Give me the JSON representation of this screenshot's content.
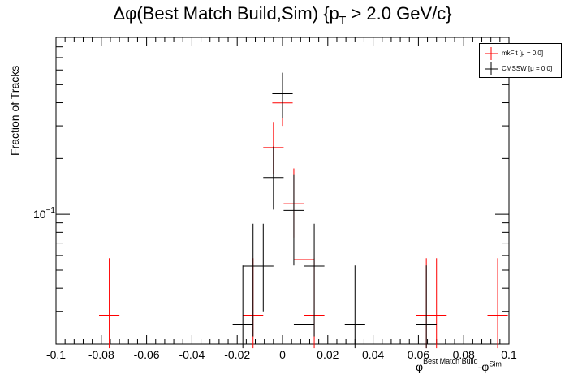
{
  "title_main": "Δφ(Best Match Build,Sim) {p",
  "title_sub": "T",
  "title_tail": " > 2.0 GeV/c}",
  "ylabel": "Fraction of Tracks",
  "xlabel_phi1": "φ",
  "xlabel_sub1": "Best Match Build",
  "xlabel_mid": "-φ",
  "xlabel_sup2": "Sim",
  "legend": [
    {
      "label": "mkFit  [μ =  0.0]",
      "color": "#ff0000"
    },
    {
      "label": "CMSSW  [μ =  0.0]",
      "color": "#000000"
    }
  ],
  "chart_data": {
    "type": "scatter",
    "xlim": [
      -0.1,
      0.1
    ],
    "ylim": [
      0.02,
      0.9
    ],
    "yscale": "log",
    "xticks": [
      "-0.1",
      "-0.08",
      "-0.06",
      "-0.04",
      "-0.02",
      "0",
      "0.02",
      "0.04",
      "0.06",
      "0.08",
      "0.1"
    ],
    "yticks": [
      "10^-1"
    ],
    "bin_half_width": 0.0045,
    "series": [
      {
        "name": "mkFit",
        "color": "#ff0000",
        "points": [
          {
            "x": -0.0765,
            "y": 0.0286,
            "lo": 0.019,
            "hi": 0.058
          },
          {
            "x": -0.013,
            "y": 0.0286,
            "lo": 0.019,
            "hi": 0.058
          },
          {
            "x": -0.004,
            "y": 0.229,
            "lo": 0.165,
            "hi": 0.315
          },
          {
            "x": 0.0,
            "y": 0.399,
            "lo": 0.3,
            "hi": 0.51
          },
          {
            "x": 0.005,
            "y": 0.114,
            "lo": 0.075,
            "hi": 0.177
          },
          {
            "x": 0.0095,
            "y": 0.057,
            "lo": 0.034,
            "hi": 0.097
          },
          {
            "x": 0.014,
            "y": 0.0286,
            "lo": 0.019,
            "hi": 0.058
          },
          {
            "x": 0.0635,
            "y": 0.0286,
            "lo": 0.019,
            "hi": 0.058
          },
          {
            "x": 0.068,
            "y": 0.0286,
            "lo": 0.019,
            "hi": 0.058
          },
          {
            "x": 0.095,
            "y": 0.0286,
            "lo": 0.019,
            "hi": 0.058
          }
        ]
      },
      {
        "name": "CMSSW",
        "color": "#000000",
        "points": [
          {
            "x": -0.0175,
            "y": 0.0256,
            "lo": 0.019,
            "hi": 0.053
          },
          {
            "x": -0.013,
            "y": 0.0526,
            "lo": 0.022,
            "hi": 0.089
          },
          {
            "x": -0.0085,
            "y": 0.0526,
            "lo": 0.03,
            "hi": 0.089
          },
          {
            "x": -0.004,
            "y": 0.158,
            "lo": 0.106,
            "hi": 0.232
          },
          {
            "x": 0.0,
            "y": 0.447,
            "lo": 0.33,
            "hi": 0.58
          },
          {
            "x": 0.005,
            "y": 0.105,
            "lo": 0.053,
            "hi": 0.163
          },
          {
            "x": 0.0095,
            "y": 0.0256,
            "lo": 0.019,
            "hi": 0.053
          },
          {
            "x": 0.014,
            "y": 0.0526,
            "lo": 0.022,
            "hi": 0.089
          },
          {
            "x": 0.032,
            "y": 0.0256,
            "lo": 0.019,
            "hi": 0.053
          },
          {
            "x": 0.0635,
            "y": 0.0256,
            "lo": 0.019,
            "hi": 0.053
          }
        ]
      }
    ]
  }
}
